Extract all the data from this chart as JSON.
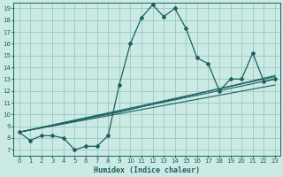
{
  "title": "",
  "xlabel": "Humidex (Indice chaleur)",
  "bg_color": "#cceae4",
  "grid_color": "#9ecec6",
  "line_color": "#1a6060",
  "xlim": [
    -0.5,
    23.5
  ],
  "ylim": [
    6.5,
    19.5
  ],
  "xticks": [
    0,
    1,
    2,
    3,
    4,
    5,
    6,
    7,
    8,
    9,
    10,
    11,
    12,
    13,
    14,
    15,
    16,
    17,
    18,
    19,
    20,
    21,
    22,
    23
  ],
  "yticks": [
    7,
    8,
    9,
    10,
    11,
    12,
    13,
    14,
    15,
    16,
    17,
    18,
    19
  ],
  "main_x": [
    0,
    1,
    2,
    3,
    4,
    5,
    6,
    7,
    8,
    9,
    10,
    11,
    12,
    13,
    14,
    15,
    16,
    17,
    18,
    19,
    20,
    21,
    22,
    23
  ],
  "main_y": [
    8.5,
    7.8,
    8.2,
    8.2,
    8.0,
    7.0,
    7.3,
    7.3,
    8.2,
    12.5,
    16.0,
    18.2,
    19.3,
    18.3,
    19.0,
    17.3,
    14.8,
    14.3,
    12.0,
    13.0,
    13.0,
    15.2,
    12.8,
    13.0
  ],
  "fan_lines": [
    {
      "x": [
        0,
        23
      ],
      "y": [
        8.5,
        12.5
      ]
    },
    {
      "x": [
        0,
        23
      ],
      "y": [
        8.5,
        13.0
      ]
    },
    {
      "x": [
        0,
        23
      ],
      "y": [
        8.5,
        13.2
      ]
    },
    {
      "x": [
        0,
        9,
        23
      ],
      "y": [
        8.5,
        10.2,
        13.3
      ]
    }
  ]
}
